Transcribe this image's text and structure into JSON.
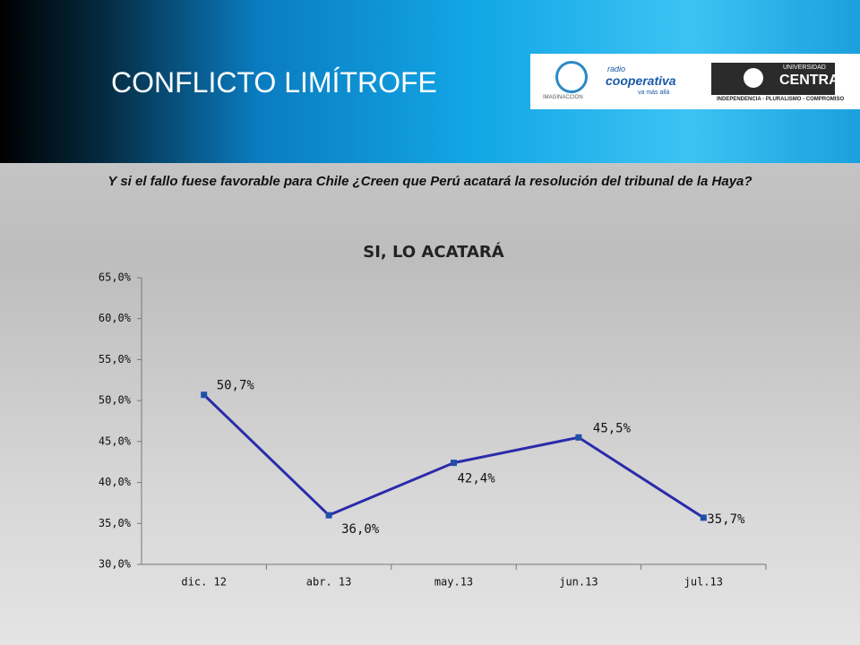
{
  "header": {
    "title": "CONFLICTO LIMÍTROFE",
    "logos": {
      "imaginaccion": "IMAGINACCION",
      "radio": "radio",
      "cooperativa": "cooperativa",
      "tagline": "va más allá",
      "university_top": "UNIVERSIDAD",
      "university_name": "CENTRAL",
      "university_motto": "INDEPENDENCIA - PLURALISMO - COMPROMISO"
    }
  },
  "question": "Y si el fallo fuese favorable para Chile ¿Creen que Perú acatará la resolución del tribunal de la Haya?",
  "chart_data": {
    "type": "line",
    "title": "SI, LO ACATARÁ",
    "categories": [
      "dic. 12",
      "abr. 13",
      "may.13",
      "jun.13",
      "jul.13"
    ],
    "values": [
      50.7,
      36.0,
      42.4,
      45.5,
      35.7
    ],
    "value_labels": [
      "50,7%",
      "36,0%",
      "42,4%",
      "45,5%",
      "35,7%"
    ],
    "color": "#2b2bab",
    "ylim": [
      30,
      65
    ],
    "yticks": [
      {
        "value": 30,
        "label": "30,0%"
      },
      {
        "value": 35,
        "label": "35,0%"
      },
      {
        "value": 40,
        "label": "40,0%"
      },
      {
        "value": 45,
        "label": "45,0%"
      },
      {
        "value": 50,
        "label": "50,0%"
      },
      {
        "value": 55,
        "label": "55,0%"
      },
      {
        "value": 60,
        "label": "60,0%"
      },
      {
        "value": 65,
        "label": "65,0%"
      }
    ],
    "grid": false
  }
}
